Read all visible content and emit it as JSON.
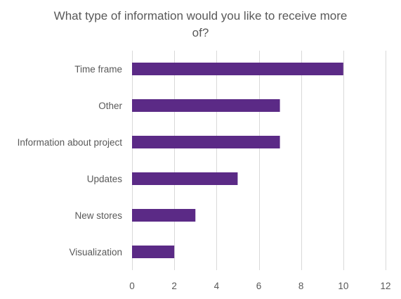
{
  "chart_data": {
    "type": "bar",
    "orientation": "horizontal",
    "title": "What type of information would you like to receive more of?",
    "title_lines": [
      "What type of information would you like to receive more",
      "of?"
    ],
    "categories": [
      "Time frame",
      "Other",
      "Information about project",
      "Updates",
      "New stores",
      "Visualization"
    ],
    "values": [
      10,
      7,
      7,
      5,
      3,
      2
    ],
    "xlim": [
      0,
      12
    ],
    "xticks": [
      0,
      2,
      4,
      6,
      8,
      10,
      12
    ],
    "grid": "vertical",
    "legend": "none",
    "xlabel": "",
    "ylabel": "",
    "colors": {
      "bar": "#5b2a86",
      "grid": "#d9d9d9",
      "text": "#595959"
    }
  }
}
